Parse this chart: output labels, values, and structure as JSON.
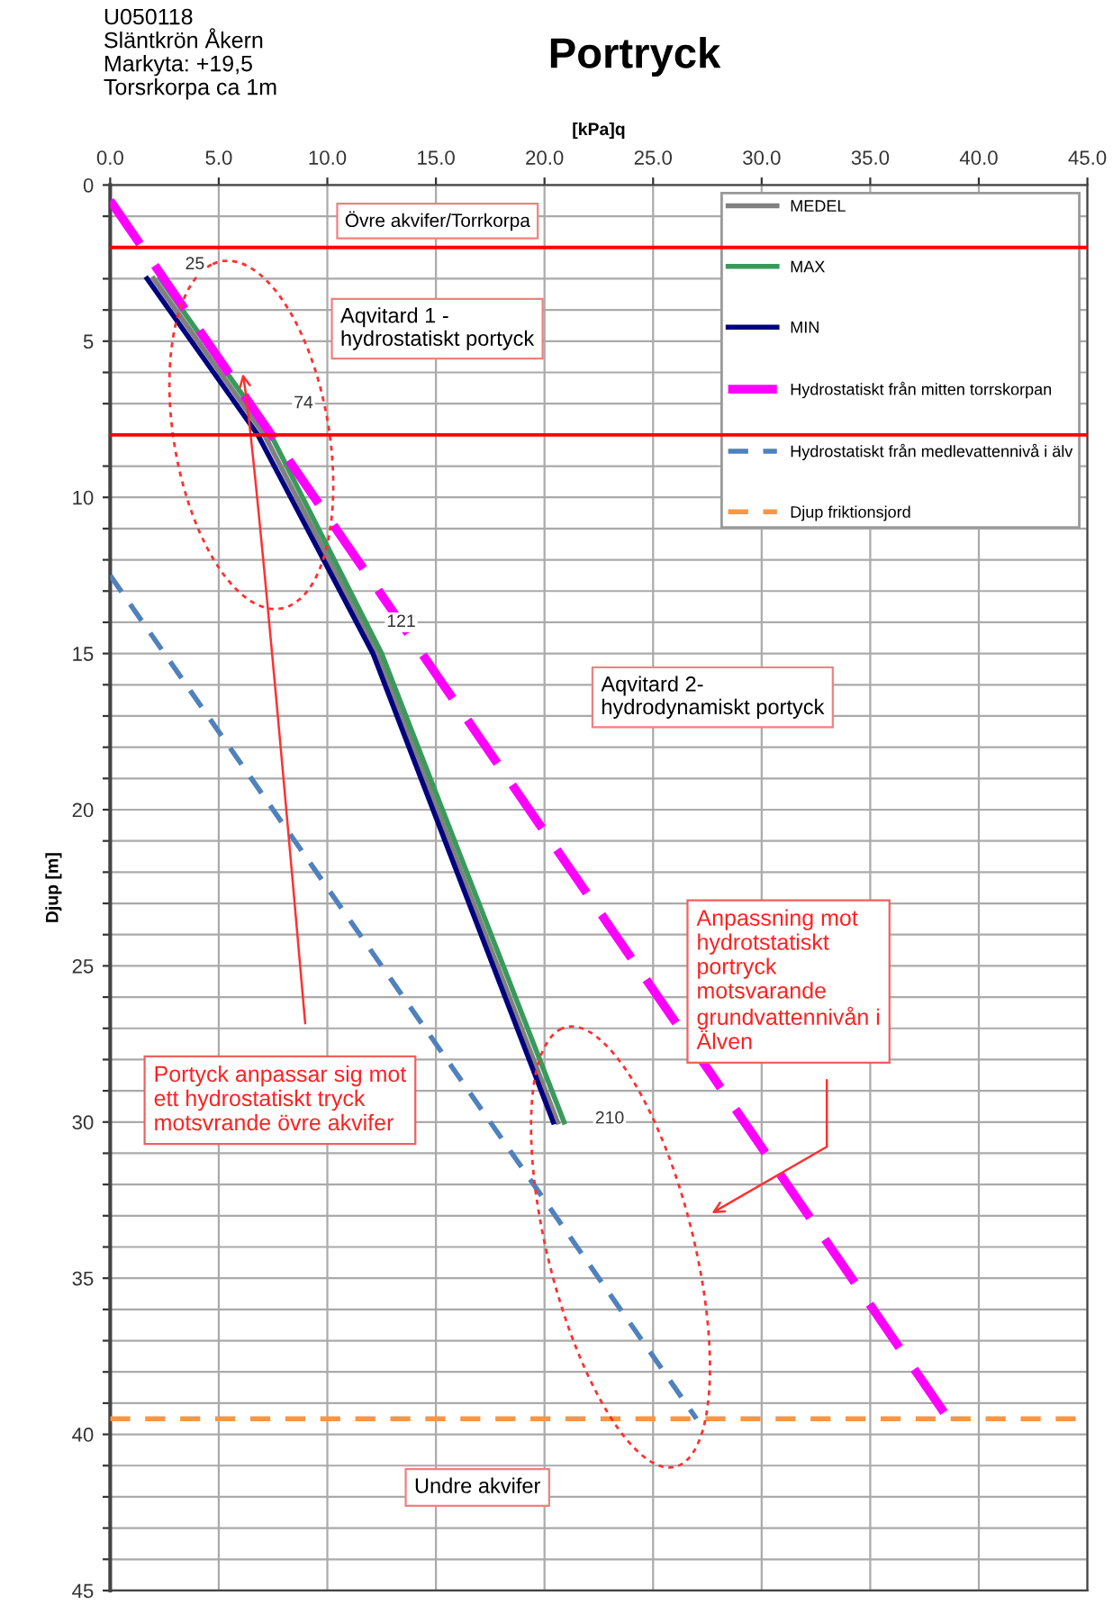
{
  "chart_data": {
    "type": "line",
    "title": "Portryck",
    "xlabel": "[kPa]q",
    "ylabel": "Djup [m]",
    "xlim": [
      0,
      45
    ],
    "ylim": [
      45,
      0
    ],
    "xticks": [
      {
        "value": 0,
        "label": "0.0"
      },
      {
        "value": 5,
        "label": "5.0"
      },
      {
        "value": 10,
        "label": "10.0"
      },
      {
        "value": 15,
        "label": "15.0"
      },
      {
        "value": 20,
        "label": "20.0"
      },
      {
        "value": 25,
        "label": "25.0"
      },
      {
        "value": 30,
        "label": "30.0"
      },
      {
        "value": 35,
        "label": "35.0"
      },
      {
        "value": 40,
        "label": "40.0"
      },
      {
        "value": 45,
        "label": "45.0"
      }
    ],
    "yticks": [
      0,
      {
        "value": 1,
        "label": null
      },
      {
        "value": 3,
        "label": null
      },
      {
        "value": 4,
        "label": null
      },
      5,
      {
        "value": 6,
        "label": null
      },
      {
        "value": 7,
        "label": null
      },
      {
        "value": 9,
        "label": null
      },
      10,
      {
        "value": 11,
        "label": null
      },
      {
        "value": 12,
        "label": null
      },
      {
        "value": 13,
        "label": null
      },
      {
        "value": 14,
        "label": null
      },
      15,
      {
        "value": 16,
        "label": null
      },
      {
        "value": 17,
        "label": null
      },
      {
        "value": 18,
        "label": null
      },
      {
        "value": 19,
        "label": null
      },
      20,
      {
        "value": 21,
        "label": null
      },
      {
        "value": 22,
        "label": null
      },
      {
        "value": 23,
        "label": null
      },
      {
        "value": 24,
        "label": null
      },
      25,
      {
        "value": 26,
        "label": null
      },
      {
        "value": 27,
        "label": null
      },
      {
        "value": 28,
        "label": null
      },
      {
        "value": 29,
        "label": null
      },
      30,
      {
        "value": 31,
        "label": null
      },
      {
        "value": 32,
        "label": null
      },
      {
        "value": 33,
        "label": null
      },
      {
        "value": 34,
        "label": null
      },
      35,
      {
        "value": 36,
        "label": null
      },
      {
        "value": 37,
        "label": null
      },
      {
        "value": 38,
        "label": null
      },
      {
        "value": 39,
        "label": null
      },
      40,
      {
        "value": 41,
        "label": null
      },
      {
        "value": 42,
        "label": null
      },
      {
        "value": 43,
        "label": null
      },
      {
        "value": 44,
        "label": null
      },
      45
    ],
    "grid": true,
    "legend": "top right",
    "marker": "none",
    "series": [
      {
        "name": "MEDEL",
        "color": "#808080",
        "line_style": "solid",
        "x": [
          2.0,
          7.1,
          12.3,
          20.6
        ],
        "values": [
          3,
          8,
          15,
          30
        ]
      },
      {
        "name": "MAX",
        "color": "#3a9a5b",
        "line_style": "solid",
        "x": [
          2.3,
          7.4,
          12.5,
          20.9
        ],
        "values": [
          3,
          8,
          15,
          30
        ]
      },
      {
        "name": "MIN",
        "color": "#000080",
        "line_style": "solid",
        "x": [
          1.7,
          6.8,
          12.1,
          20.4
        ],
        "values": [
          3,
          8,
          15,
          30
        ]
      },
      {
        "name": "Hydrostatiskt från mitten torrskorpan",
        "color": "#ff00ff",
        "line_style": "dashed",
        "x": [
          0,
          38.6
        ],
        "values": [
          0.5,
          39.5
        ]
      },
      {
        "name": "Hydrostatiskt från medlevattennivå i älv",
        "color": "#4f81bd",
        "line_style": "dashed",
        "x": [
          0,
          27.0
        ],
        "values": [
          12.5,
          39.5
        ]
      },
      {
        "name": "Djup friktionsjord",
        "color": "#f79646",
        "line_style": "dashed",
        "x": [
          0,
          45
        ],
        "values": [
          39.5,
          39.5
        ]
      }
    ],
    "ref_lines": [
      {
        "axis": "y",
        "value": 2,
        "color": "#ff0000",
        "line_style": "solid"
      },
      {
        "axis": "y",
        "value": 8,
        "color": "#ff0000",
        "line_style": "solid"
      }
    ],
    "annotations": [
      "U050118\nSläntkrön Åkern\nMarkyta: +19,5\nTorsrkorpa ca 1m",
      "Övre akvifer/Torrkorpa",
      "Aqvitard 1 -\nhydrostatiskt portyck",
      "Aqvitard 2-\nhydrodynamiskt portyck",
      "Anpassning mot\nhydrotstatiskt\nportryck\nmotsvarande\ngrundvattennivån i\nÄlven",
      "Portyck anpassar sig mot\nett hydrostatiskt tryck\nmotsvrande övre akvifer",
      "Undre akvifer",
      "25",
      "74",
      "121",
      "210"
    ]
  }
}
